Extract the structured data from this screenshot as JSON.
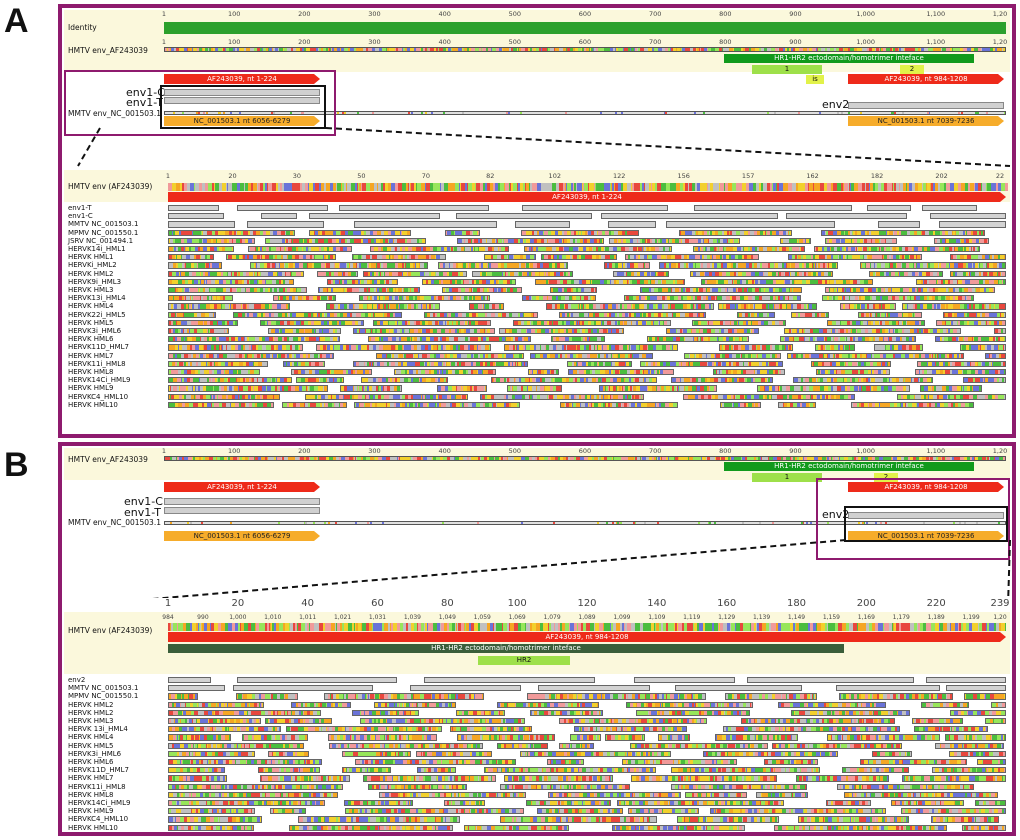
{
  "panels": {
    "a": {
      "label": "A"
    },
    "b": {
      "label": "B"
    }
  },
  "overview": {
    "identity_label": "Identity",
    "top_seq_label": "HMTV env_AF243039",
    "bottom_seq_label": "MMTV env_NC_001503.1",
    "ruler": [
      "1",
      "100",
      "200",
      "300",
      "400",
      "500",
      "600",
      "700",
      "800",
      "900",
      "1,000",
      "1,100",
      "1,20"
    ],
    "ruler_b": [
      "1",
      "100",
      "200",
      "300",
      "400",
      "500",
      "600",
      "700",
      "800",
      "900",
      "1,000",
      "1,100",
      "1,20"
    ],
    "annotations": {
      "hr_label": "HR1-HR2 ectodomain/homotrimer inteface",
      "hr_one": "1",
      "hr_two": "2",
      "is_label": "is",
      "af_left": "AF243039, nt 1-224",
      "af_right": "AF243039, nt 984-1208",
      "nc_left": "NC_001503.1 nt 6056-6279",
      "nc_right": "NC_001503.1 nt 7039-7236"
    },
    "env_labels": {
      "env1c": "env1-C",
      "env1t": "env1-T",
      "env2": "env2"
    }
  },
  "detail_a": {
    "header_label": "HMTV env (AF243039)",
    "ruler": [
      "1",
      "20",
      "30",
      "50",
      "70",
      "82",
      "102",
      "122",
      "156",
      "157",
      "162",
      "182",
      "202",
      "22"
    ],
    "bar_label": "AF243039, nt 1-224",
    "rows": [
      "env1-T",
      "env1-C",
      "MMTV NC_001503.1",
      "MPMV NC_001550.1",
      "JSRV NC_001494.1",
      "HERVK14i_HML1",
      "HERVK HML1",
      "HERVKi_HML2",
      "HERVK HML2",
      "HERVK9i_HML3",
      "HERVK HML3",
      "HERVK13i_HML4",
      "HERVK HML4",
      "HERVK22i_HML5",
      "HERVK HML5",
      "HERVK3i_HML6",
      "HERVK HML6",
      "HERVK11D_HML7",
      "HERVK HML7",
      "HERVK11i_HML8",
      "HERVK HML8",
      "HERVK14Ci_HML9",
      "HERVK HML9",
      "HERVKC4_HML10",
      "HERVK HML10"
    ]
  },
  "detail_b": {
    "header_label": "HMTV env (AF243039)",
    "big_ruler": [
      "1",
      "20",
      "40",
      "60",
      "80",
      "100",
      "120",
      "140",
      "160",
      "180",
      "200",
      "220",
      "239"
    ],
    "small_ruler": [
      "984",
      "990",
      "1,000",
      "1,010",
      "1,011",
      "1,021",
      "1,031",
      "1,039",
      "1,049",
      "1,059",
      "1,069",
      "1,079",
      "1,089",
      "1,099",
      "1,109",
      "1,119",
      "1,129",
      "1,139",
      "1,149",
      "1,159",
      "1,169",
      "1,179",
      "1,189",
      "1,199",
      "1,20"
    ],
    "bar_label": "AF243039, nt 984-1208",
    "hr_label": "HR1-HR2 ectodomain/homotrimer inteface",
    "hr2_label": "HR2",
    "rows": [
      "env2",
      "MMTV NC_001503.1",
      "MPMV NC_001550.1",
      "HERVK HML2",
      "HERVK HML2",
      "HERVK HML3",
      "HERVK 13i_HML4",
      "HERVK HML4",
      "HERVK HML5",
      "HERVK3i_HML6",
      "HERVK HML6",
      "HERVK11D_HML7",
      "HERVK HML7",
      "HERVK11i_HML8",
      "HERVK HML8",
      "HERVK14Ci_HML9",
      "HERVK HML9",
      "HERVKC4_HML10",
      "HERVK HML10"
    ]
  },
  "colors": {
    "frame": "#8e1a6e",
    "red": "#ee2a1a",
    "orange": "#f6ac2b",
    "green": "#119a1c",
    "header_bg": "#fbf8dc"
  }
}
